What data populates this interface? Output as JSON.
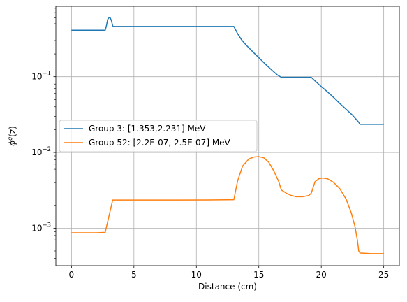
{
  "chart_data": {
    "type": "line",
    "title": "",
    "xlabel": "Distance (cm)",
    "ylabel": "ϕ^g(z)",
    "ylabel_main": "ϕ",
    "ylabel_sup": "g",
    "ylabel_tail": "(z)",
    "y_scale": "log",
    "xlim": [
      -1.25,
      26.25
    ],
    "ylim": [
      0.00032,
      0.85
    ],
    "grid": true,
    "legend_position": "center-left",
    "x_ticks": [
      0,
      5,
      10,
      15,
      20,
      25
    ],
    "x_tick_labels": [
      "0",
      "5",
      "10",
      "15",
      "20",
      "25"
    ],
    "y_ticks": [
      0.001,
      0.01,
      0.1
    ],
    "y_tick_bases": [
      "10",
      "10",
      "10"
    ],
    "y_tick_exponents": [
      "−3",
      "−2",
      "−1"
    ],
    "series": [
      {
        "name": "Group 3: [1.353,2.231] MeV",
        "color": "#1f77b4",
        "x": [
          0,
          1,
          2,
          2.7,
          2.8,
          2.9,
          3.0,
          3.1,
          3.2,
          3.3,
          3.35,
          5,
          8,
          11,
          13,
          13.3,
          13.6,
          14,
          14.5,
          15,
          15.5,
          16,
          16.5,
          16.8,
          17,
          18,
          19.2,
          19.5,
          20,
          20.5,
          21,
          21.5,
          22,
          22.5,
          23.0,
          23.1,
          24,
          25
        ],
        "y": [
          0.41,
          0.41,
          0.41,
          0.41,
          0.47,
          0.57,
          0.6,
          0.6,
          0.55,
          0.47,
          0.46,
          0.46,
          0.46,
          0.46,
          0.46,
          0.37,
          0.31,
          0.26,
          0.215,
          0.178,
          0.148,
          0.124,
          0.105,
          0.098,
          0.098,
          0.098,
          0.098,
          0.088,
          0.074,
          0.063,
          0.053,
          0.044,
          0.037,
          0.031,
          0.025,
          0.0235,
          0.0235,
          0.0235
        ]
      },
      {
        "name": "Group 52: [2.2E-07, 2.5E-07] MeV",
        "color": "#ff7f0e",
        "x": [
          0,
          1,
          2,
          2.7,
          3.3,
          5,
          8,
          11,
          13,
          13.3,
          13.7,
          14.2,
          14.6,
          15,
          15.4,
          15.8,
          16.2,
          16.6,
          16.8,
          17.2,
          17.6,
          18,
          18.5,
          19,
          19.2,
          19.5,
          19.8,
          20.1,
          20.5,
          21,
          21.5,
          22,
          22.4,
          22.7,
          22.9,
          23.0,
          23.1,
          24,
          25
        ],
        "y": [
          0.00087,
          0.00087,
          0.00087,
          0.00088,
          0.00235,
          0.00235,
          0.00235,
          0.00236,
          0.00238,
          0.0042,
          0.0066,
          0.0082,
          0.0087,
          0.0088,
          0.0085,
          0.0074,
          0.0057,
          0.0041,
          0.0032,
          0.0029,
          0.0027,
          0.0026,
          0.0026,
          0.0027,
          0.0029,
          0.0041,
          0.0045,
          0.0046,
          0.0045,
          0.004,
          0.0033,
          0.0024,
          0.0016,
          0.00105,
          0.00068,
          0.0005,
          0.00047,
          0.00046,
          0.00046
        ]
      }
    ]
  }
}
